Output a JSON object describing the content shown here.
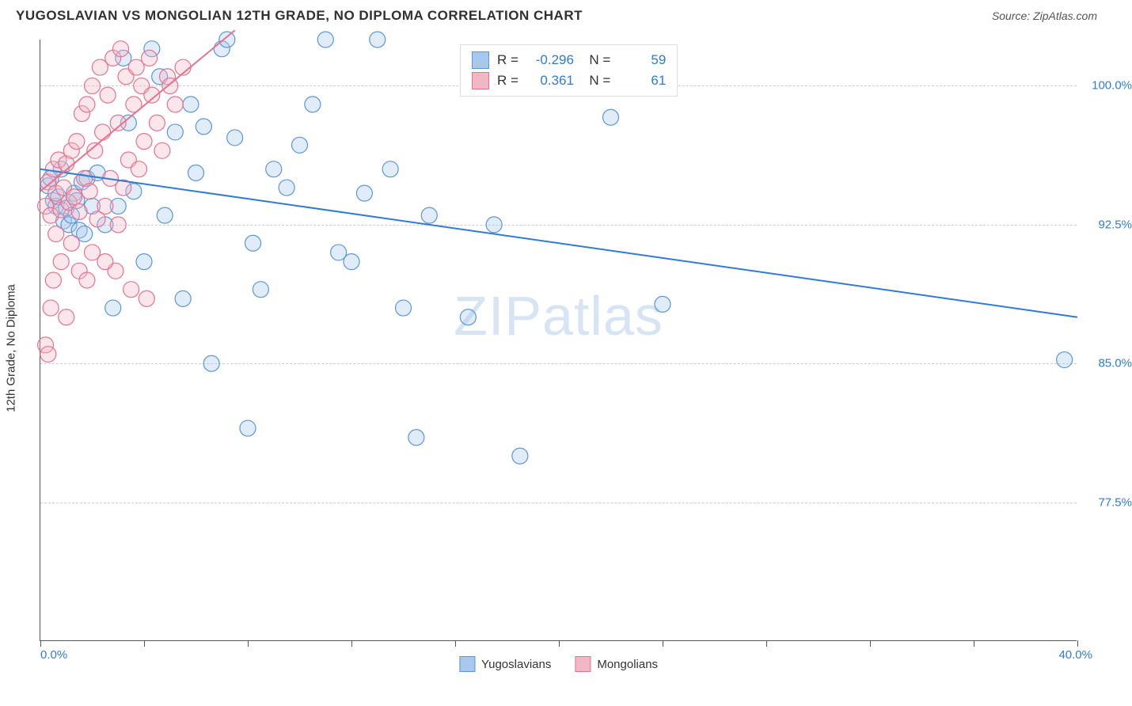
{
  "header": {
    "title": "YUGOSLAVIAN VS MONGOLIAN 12TH GRADE, NO DIPLOMA CORRELATION CHART",
    "source_prefix": "Source: ",
    "source_name": "ZipAtlas.com"
  },
  "chart": {
    "type": "scatter",
    "ylabel": "12th Grade, No Diploma",
    "watermark": "ZIPatlas",
    "background_color": "#ffffff",
    "grid_color": "#cccccc",
    "axis_color": "#555555",
    "tick_label_color": "#2e7cd6",
    "xlim": [
      0,
      40
    ],
    "ylim": [
      70,
      102.5
    ],
    "x_axis": {
      "min_label": "0.0%",
      "max_label": "40.0%",
      "tick_positions": [
        0,
        4,
        8,
        12,
        16,
        20,
        24,
        28,
        32,
        36,
        40
      ]
    },
    "y_gridlines": [
      {
        "value": 100.0,
        "label": "100.0%"
      },
      {
        "value": 92.5,
        "label": "92.5%"
      },
      {
        "value": 85.0,
        "label": "85.0%"
      },
      {
        "value": 77.5,
        "label": "77.5%"
      }
    ],
    "marker_radius": 10,
    "marker_opacity": 0.35,
    "line_width": 2,
    "series": [
      {
        "name": "Yugoslavians",
        "color_fill": "#a9c8ee",
        "color_stroke": "#5a96db",
        "line_color": "#2e7cd6",
        "R": "-0.296",
        "N": "59",
        "trend": {
          "x1": 0,
          "y1": 95.5,
          "x2": 40,
          "y2": 87.5
        },
        "points": [
          [
            0.3,
            94.6
          ],
          [
            0.4,
            95.0
          ],
          [
            0.5,
            93.8
          ],
          [
            0.6,
            93.5
          ],
          [
            0.7,
            94.0
          ],
          [
            0.8,
            95.5
          ],
          [
            0.9,
            92.7
          ],
          [
            1.0,
            93.4
          ],
          [
            1.1,
            92.5
          ],
          [
            1.2,
            93.0
          ],
          [
            1.3,
            94.2
          ],
          [
            1.4,
            93.8
          ],
          [
            1.5,
            92.2
          ],
          [
            1.6,
            94.8
          ],
          [
            1.7,
            92.0
          ],
          [
            1.8,
            95.0
          ],
          [
            2.0,
            93.5
          ],
          [
            2.2,
            95.3
          ],
          [
            2.5,
            92.5
          ],
          [
            2.8,
            88.0
          ],
          [
            3.0,
            93.5
          ],
          [
            3.2,
            101.5
          ],
          [
            3.4,
            98.0
          ],
          [
            3.6,
            94.3
          ],
          [
            4.0,
            90.5
          ],
          [
            4.3,
            102.0
          ],
          [
            4.6,
            100.5
          ],
          [
            4.8,
            93.0
          ],
          [
            5.2,
            97.5
          ],
          [
            5.5,
            88.5
          ],
          [
            5.8,
            99.0
          ],
          [
            6.0,
            95.3
          ],
          [
            6.3,
            97.8
          ],
          [
            6.6,
            85.0
          ],
          [
            7.0,
            102.0
          ],
          [
            7.2,
            102.5
          ],
          [
            7.5,
            97.2
          ],
          [
            8.0,
            81.5
          ],
          [
            8.2,
            91.5
          ],
          [
            8.5,
            89.0
          ],
          [
            9.0,
            95.5
          ],
          [
            9.5,
            94.5
          ],
          [
            10.0,
            96.8
          ],
          [
            10.5,
            99.0
          ],
          [
            11.0,
            102.5
          ],
          [
            11.5,
            91.0
          ],
          [
            12.0,
            90.5
          ],
          [
            12.5,
            94.2
          ],
          [
            13.0,
            102.5
          ],
          [
            13.5,
            95.5
          ],
          [
            14.0,
            88.0
          ],
          [
            14.5,
            81.0
          ],
          [
            15.0,
            93.0
          ],
          [
            16.5,
            87.5
          ],
          [
            17.5,
            92.5
          ],
          [
            18.5,
            80.0
          ],
          [
            22.0,
            98.3
          ],
          [
            24.0,
            88.2
          ],
          [
            39.5,
            85.2
          ]
        ]
      },
      {
        "name": "Mongolians",
        "color_fill": "#f2b7c5",
        "color_stroke": "#e5738f",
        "line_color": "#e5738f",
        "R": "0.361",
        "N": "61",
        "trend": {
          "x1": 0,
          "y1": 94.3,
          "x2": 7.5,
          "y2": 103.0
        },
        "points": [
          [
            0.2,
            93.5
          ],
          [
            0.3,
            94.8
          ],
          [
            0.4,
            93.0
          ],
          [
            0.5,
            95.5
          ],
          [
            0.6,
            94.2
          ],
          [
            0.7,
            96.0
          ],
          [
            0.8,
            93.3
          ],
          [
            0.9,
            94.5
          ],
          [
            1.0,
            95.8
          ],
          [
            1.1,
            93.7
          ],
          [
            1.2,
            96.5
          ],
          [
            1.3,
            94.0
          ],
          [
            1.4,
            97.0
          ],
          [
            1.5,
            93.2
          ],
          [
            1.6,
            98.5
          ],
          [
            1.7,
            95.0
          ],
          [
            1.8,
            99.0
          ],
          [
            1.9,
            94.3
          ],
          [
            2.0,
            100.0
          ],
          [
            2.1,
            96.5
          ],
          [
            2.2,
            92.8
          ],
          [
            2.3,
            101.0
          ],
          [
            2.4,
            97.5
          ],
          [
            2.5,
            93.5
          ],
          [
            2.6,
            99.5
          ],
          [
            2.7,
            95.0
          ],
          [
            2.8,
            101.5
          ],
          [
            2.9,
            90.0
          ],
          [
            3.0,
            98.0
          ],
          [
            3.1,
            102.0
          ],
          [
            3.2,
            94.5
          ],
          [
            3.3,
            100.5
          ],
          [
            3.4,
            96.0
          ],
          [
            3.5,
            89.0
          ],
          [
            3.6,
            99.0
          ],
          [
            3.7,
            101.0
          ],
          [
            3.8,
            95.5
          ],
          [
            3.9,
            100.0
          ],
          [
            4.0,
            97.0
          ],
          [
            4.1,
            88.5
          ],
          [
            4.2,
            101.5
          ],
          [
            4.3,
            99.5
          ],
          [
            4.5,
            98.0
          ],
          [
            4.7,
            96.5
          ],
          [
            4.9,
            100.5
          ],
          [
            5.0,
            100.0
          ],
          [
            5.2,
            99.0
          ],
          [
            5.5,
            101.0
          ],
          [
            0.2,
            86.0
          ],
          [
            0.3,
            85.5
          ],
          [
            0.5,
            89.5
          ],
          [
            0.8,
            90.5
          ],
          [
            1.2,
            91.5
          ],
          [
            0.4,
            88.0
          ],
          [
            1.5,
            90.0
          ],
          [
            2.0,
            91.0
          ],
          [
            0.6,
            92.0
          ],
          [
            3.0,
            92.5
          ],
          [
            1.0,
            87.5
          ],
          [
            2.5,
            90.5
          ],
          [
            1.8,
            89.5
          ]
        ]
      }
    ],
    "legend": {
      "items": [
        {
          "label": "Yugoslavians",
          "fill": "#a9c8ee",
          "stroke": "#5a96db"
        },
        {
          "label": "Mongolians",
          "fill": "#f2b7c5",
          "stroke": "#e5738f"
        }
      ]
    }
  }
}
